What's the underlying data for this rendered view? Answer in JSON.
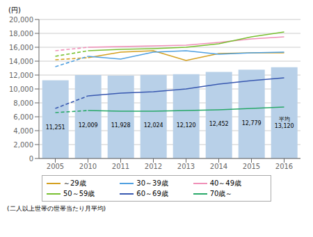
{
  "chart_data": {
    "type": "bar",
    "categories": [
      "2005",
      "2010",
      "2011",
      "2012",
      "2013",
      "2014",
      "2015",
      "2016"
    ],
    "ylabel": "(円)",
    "footnote": "(二人以上世帯の世帯当たり月平均)",
    "ylim": [
      0,
      20000
    ],
    "yticks": [
      0,
      {
        "value": 2000,
        "label": "2,000"
      },
      {
        "value": 4000,
        "label": "4,000"
      },
      {
        "value": 6000,
        "label": "6,000"
      },
      {
        "value": 8000,
        "label": "8,000"
      },
      {
        "value": 10000,
        "label": "10,000"
      },
      {
        "value": 12000,
        "label": "12,000"
      },
      {
        "value": 14000,
        "label": "14,000"
      },
      {
        "value": 16000,
        "label": "16,000"
      },
      {
        "value": 18000,
        "label": "18,000"
      },
      {
        "value": 20000,
        "label": "20,000"
      }
    ],
    "grid": true,
    "data_labels": true,
    "legend": "bottom",
    "series": [
      {
        "type": "bar",
        "color": "#b8d0e8",
        "values": [
          11251,
          12009,
          11928,
          12024,
          12120,
          12452,
          12779,
          13120
        ],
        "value_labels": [
          "11,251",
          "12,009",
          "11,928",
          "12,024",
          "12,120",
          "12,452",
          "12,779",
          "平均\n13,120"
        ]
      },
      {
        "type": "line",
        "color": "#d4a020",
        "line_style": "dashed",
        "values": [
          14200,
          14500,
          null,
          null,
          null,
          null,
          null,
          null
        ]
      },
      {
        "name": "～29歳",
        "type": "line",
        "color": "#d4a020",
        "line_style": "solid",
        "values": [
          null,
          14500,
          15300,
          15500,
          14100,
          15100,
          15200,
          15200
        ]
      },
      {
        "type": "line",
        "color": "#50a0e0",
        "line_style": "dashed",
        "values": [
          13200,
          14700,
          null,
          null,
          null,
          null,
          null,
          null
        ]
      },
      {
        "name": "30～39歳",
        "type": "line",
        "color": "#50a0e0",
        "line_style": "solid",
        "values": [
          null,
          14700,
          14300,
          15300,
          15500,
          15000,
          15200,
          15300
        ]
      },
      {
        "type": "line",
        "color": "#f090b8",
        "line_style": "dashed",
        "values": [
          15500,
          16000,
          null,
          null,
          null,
          null,
          null,
          null
        ]
      },
      {
        "name": "40～49歳",
        "type": "line",
        "color": "#f090b8",
        "line_style": "solid",
        "values": [
          null,
          16000,
          16100,
          16200,
          16300,
          16700,
          17200,
          17500
        ]
      },
      {
        "type": "line",
        "color": "#78c030",
        "line_style": "dashed",
        "values": [
          14700,
          15500,
          null,
          null,
          null,
          null,
          null,
          null
        ]
      },
      {
        "name": "50～59歳",
        "type": "line",
        "color": "#78c030",
        "line_style": "solid",
        "values": [
          null,
          15500,
          15700,
          15800,
          16000,
          16500,
          17500,
          18200
        ]
      },
      {
        "type": "line",
        "color": "#3858b0",
        "line_style": "dashed",
        "values": [
          7200,
          9000,
          null,
          null,
          null,
          null,
          null,
          null
        ]
      },
      {
        "name": "60～69歳",
        "type": "line",
        "color": "#3858b0",
        "line_style": "solid",
        "values": [
          null,
          9000,
          9400,
          9600,
          10000,
          10700,
          11200,
          11600
        ]
      },
      {
        "type": "line",
        "color": "#28a868",
        "line_style": "dashed",
        "values": [
          6600,
          6900,
          null,
          null,
          null,
          null,
          null,
          null
        ]
      },
      {
        "name": "70歳～",
        "type": "line",
        "color": "#28a868",
        "line_style": "solid",
        "values": [
          null,
          6900,
          6800,
          6800,
          6900,
          7000,
          7200,
          7400
        ]
      }
    ]
  }
}
